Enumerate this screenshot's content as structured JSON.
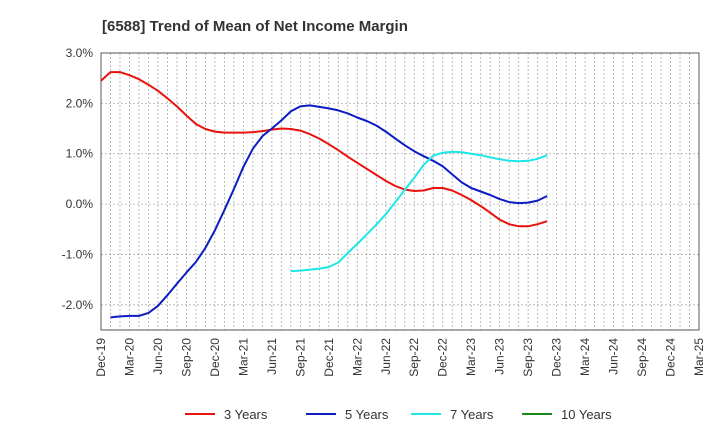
{
  "chart_data": {
    "type": "line",
    "title": "[6588]  Trend of Mean of Net Income Margin",
    "xlabel": "",
    "ylabel": "",
    "ylim": [
      -2.5,
      3.0
    ],
    "y_ticks": [
      3.0,
      2.0,
      1.0,
      0.0,
      -1.0,
      -2.0
    ],
    "y_tick_labels": [
      "3.0%",
      "2.0%",
      "1.0%",
      "0.0%",
      "-1.0%",
      "-2.0%"
    ],
    "x_tick_labels": [
      "Dec-19",
      "Mar-20",
      "Jun-20",
      "Sep-20",
      "Dec-20",
      "Mar-21",
      "Jun-21",
      "Sep-21",
      "Dec-21",
      "Mar-22",
      "Jun-22",
      "Sep-22",
      "Dec-22",
      "Mar-23",
      "Jun-23",
      "Sep-23",
      "Dec-23",
      "Mar-24",
      "Jun-24",
      "Sep-24",
      "Dec-24",
      "Mar-25"
    ],
    "grid": true,
    "legend_position": "bottom",
    "series": [
      {
        "name": "3 Years",
        "color": "#e8120c",
        "points": [
          [
            0,
            2.45
          ],
          [
            1,
            2.62
          ],
          [
            2,
            2.62
          ],
          [
            3,
            2.56
          ],
          [
            4,
            2.48
          ],
          [
            5,
            2.37
          ],
          [
            6,
            2.25
          ],
          [
            7,
            2.1
          ],
          [
            8,
            1.94
          ],
          [
            9,
            1.76
          ],
          [
            10,
            1.59
          ],
          [
            11,
            1.49
          ],
          [
            12,
            1.44
          ],
          [
            13,
            1.42
          ],
          [
            14,
            1.42
          ],
          [
            15,
            1.42
          ],
          [
            16,
            1.43
          ],
          [
            17,
            1.45
          ],
          [
            18,
            1.48
          ],
          [
            19,
            1.5
          ],
          [
            20,
            1.49
          ],
          [
            21,
            1.46
          ],
          [
            22,
            1.39
          ],
          [
            23,
            1.3
          ],
          [
            24,
            1.19
          ],
          [
            25,
            1.07
          ],
          [
            26,
            0.94
          ],
          [
            27,
            0.82
          ],
          [
            28,
            0.7
          ],
          [
            29,
            0.58
          ],
          [
            30,
            0.46
          ],
          [
            31,
            0.36
          ],
          [
            32,
            0.29
          ],
          [
            33,
            0.26
          ],
          [
            34,
            0.27
          ],
          [
            35,
            0.32
          ],
          [
            36,
            0.32
          ],
          [
            37,
            0.27
          ],
          [
            38,
            0.18
          ],
          [
            39,
            0.08
          ],
          [
            40,
            -0.04
          ],
          [
            41,
            -0.17
          ],
          [
            42,
            -0.31
          ],
          [
            43,
            -0.4
          ],
          [
            44,
            -0.44
          ],
          [
            45,
            -0.44
          ],
          [
            46,
            -0.4
          ],
          [
            47,
            -0.34
          ]
        ]
      },
      {
        "name": "5 Years",
        "color": "#0c1bc2",
        "points": [
          [
            1,
            -2.25
          ],
          [
            2,
            -2.23
          ],
          [
            3,
            -2.22
          ],
          [
            4,
            -2.22
          ],
          [
            5,
            -2.16
          ],
          [
            6,
            -2.02
          ],
          [
            7,
            -1.81
          ],
          [
            8,
            -1.58
          ],
          [
            9,
            -1.36
          ],
          [
            10,
            -1.15
          ],
          [
            11,
            -0.87
          ],
          [
            12,
            -0.52
          ],
          [
            13,
            -0.12
          ],
          [
            14,
            0.3
          ],
          [
            15,
            0.74
          ],
          [
            16,
            1.1
          ],
          [
            17,
            1.35
          ],
          [
            18,
            1.5
          ],
          [
            19,
            1.66
          ],
          [
            20,
            1.84
          ],
          [
            21,
            1.94
          ],
          [
            22,
            1.96
          ],
          [
            23,
            1.93
          ],
          [
            24,
            1.9
          ],
          [
            25,
            1.86
          ],
          [
            26,
            1.8
          ],
          [
            27,
            1.72
          ],
          [
            28,
            1.65
          ],
          [
            29,
            1.56
          ],
          [
            30,
            1.44
          ],
          [
            31,
            1.3
          ],
          [
            32,
            1.17
          ],
          [
            33,
            1.05
          ],
          [
            34,
            0.95
          ],
          [
            35,
            0.86
          ],
          [
            36,
            0.75
          ],
          [
            37,
            0.59
          ],
          [
            38,
            0.43
          ],
          [
            39,
            0.32
          ],
          [
            40,
            0.25
          ],
          [
            41,
            0.18
          ],
          [
            42,
            0.1
          ],
          [
            43,
            0.04
          ],
          [
            44,
            0.02
          ],
          [
            45,
            0.03
          ],
          [
            46,
            0.07
          ],
          [
            47,
            0.16
          ]
        ]
      },
      {
        "name": "7 Years",
        "color": "#1de6e6",
        "points": [
          [
            20,
            -1.33
          ],
          [
            21,
            -1.32
          ],
          [
            22,
            -1.3
          ],
          [
            23,
            -1.28
          ],
          [
            24,
            -1.25
          ],
          [
            25,
            -1.16
          ],
          [
            26,
            -0.97
          ],
          [
            27,
            -0.79
          ],
          [
            28,
            -0.6
          ],
          [
            29,
            -0.41
          ],
          [
            30,
            -0.2
          ],
          [
            31,
            0.04
          ],
          [
            32,
            0.28
          ],
          [
            33,
            0.52
          ],
          [
            34,
            0.78
          ],
          [
            35,
            0.96
          ],
          [
            36,
            1.02
          ],
          [
            37,
            1.04
          ],
          [
            38,
            1.03
          ],
          [
            39,
            1.0
          ],
          [
            40,
            0.97
          ],
          [
            41,
            0.93
          ],
          [
            42,
            0.89
          ],
          [
            43,
            0.86
          ],
          [
            44,
            0.85
          ],
          [
            45,
            0.86
          ],
          [
            46,
            0.9
          ],
          [
            47,
            0.97
          ]
        ]
      },
      {
        "name": "10 Years",
        "color": "#1a8a1a",
        "points": []
      }
    ]
  }
}
